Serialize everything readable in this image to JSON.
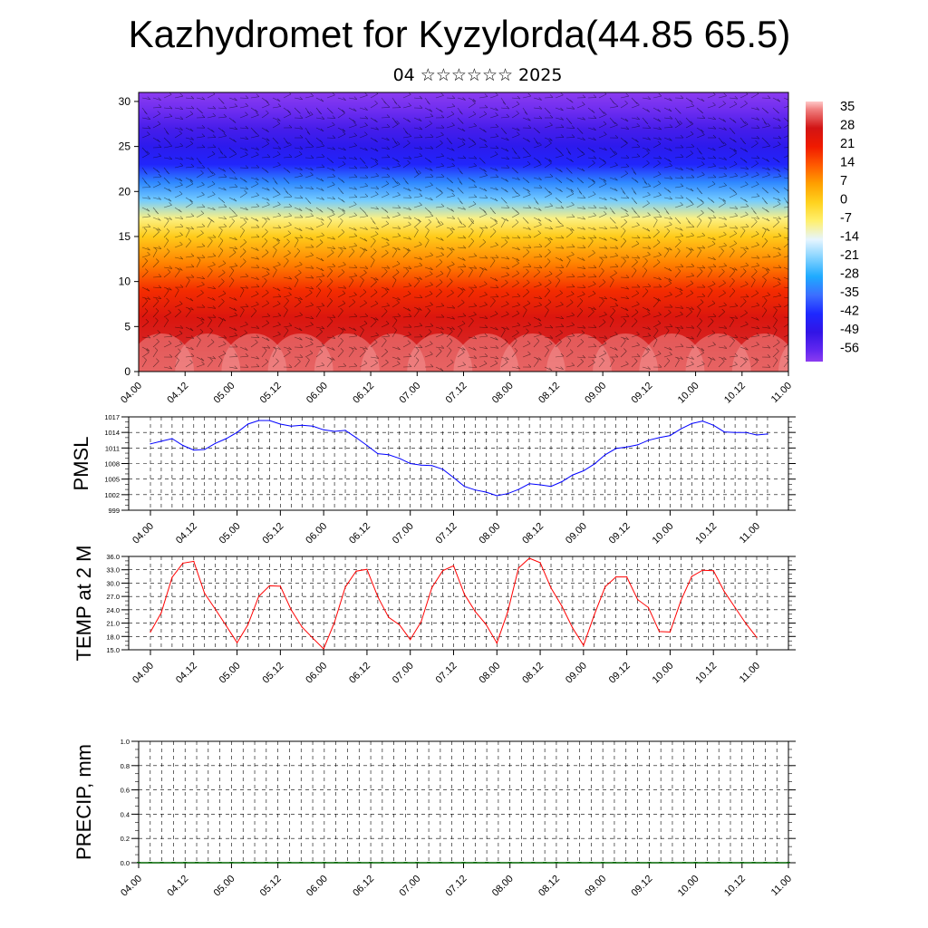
{
  "header": {
    "title": "Kazhydromet for Kyzylorda(44.85 65.5)",
    "date": "04 ☆☆☆☆☆☆ 2025"
  },
  "chart_data": [
    {
      "type": "heatmap",
      "name": "vertical-section",
      "yticks": [
        "0",
        "5",
        "10",
        "15",
        "20",
        "25",
        "30"
      ],
      "ylim": [
        0,
        31
      ],
      "xticks": [
        "04.00",
        "04.12",
        "05.00",
        "05.12",
        "06.00",
        "06.12",
        "07.00",
        "07.12",
        "08.00",
        "08.12",
        "09.00",
        "09.12",
        "10.00",
        "10.12",
        "11.00"
      ],
      "colorbar": {
        "labels": [
          "35",
          "28",
          "21",
          "14",
          "7",
          "0",
          "-7",
          "-14",
          "-21",
          "-28",
          "-35",
          "-42",
          "-49",
          "-56"
        ],
        "stops": [
          {
            "value": 38,
            "color": "#ffc8c8"
          },
          {
            "value": 35,
            "color": "#f08080"
          },
          {
            "value": 28,
            "color": "#d21414"
          },
          {
            "value": 21,
            "color": "#f01a00"
          },
          {
            "value": 14,
            "color": "#ff5a00"
          },
          {
            "value": 7,
            "color": "#ffa000"
          },
          {
            "value": 0,
            "color": "#ffd21e"
          },
          {
            "value": -7,
            "color": "#fff06e"
          },
          {
            "value": -14,
            "color": "#e6f5ff"
          },
          {
            "value": -21,
            "color": "#82d2ff"
          },
          {
            "value": -28,
            "color": "#1eaaff"
          },
          {
            "value": -35,
            "color": "#3c6eff"
          },
          {
            "value": -42,
            "color": "#1e28ff"
          },
          {
            "value": -49,
            "color": "#3214e6"
          },
          {
            "value": -56,
            "color": "#6428f0"
          },
          {
            "value": -60,
            "color": "#8c3cf0"
          }
        ]
      },
      "profile": [
        {
          "h": 0,
          "t": 30
        },
        {
          "h": 3,
          "t": 29
        },
        {
          "h": 6,
          "t": 26
        },
        {
          "h": 9,
          "t": 19
        },
        {
          "h": 12,
          "t": 10
        },
        {
          "h": 15,
          "t": 1
        },
        {
          "h": 17,
          "t": -8
        },
        {
          "h": 19,
          "t": -22
        },
        {
          "h": 21,
          "t": -32
        },
        {
          "h": 23,
          "t": -43
        },
        {
          "h": 25,
          "t": -47
        },
        {
          "h": 27,
          "t": -52
        },
        {
          "h": 29,
          "t": -57
        },
        {
          "h": 31,
          "t": -60
        }
      ]
    },
    {
      "type": "line",
      "name": "pmsl",
      "ylabel": "PMSL",
      "ylim": [
        999,
        1017
      ],
      "yticks": [
        "1017",
        "1014",
        "1011",
        "1008",
        "1005",
        "1002",
        "999"
      ],
      "xticks": [
        "04.00",
        "04.12",
        "05.00",
        "05.12",
        "06.00",
        "06.12",
        "07.00",
        "07.12",
        "08.00",
        "08.12",
        "09.00",
        "09.12",
        "10.00",
        "10.12",
        "11.00"
      ],
      "x_step_hours": 3,
      "color": "#0000ff",
      "values": [
        1011.8,
        1012.3,
        1012.8,
        1011.5,
        1010.6,
        1010.7,
        1011.9,
        1012.8,
        1014.0,
        1015.6,
        1016.3,
        1016.3,
        1015.6,
        1015.2,
        1015.4,
        1015.2,
        1014.5,
        1014.2,
        1014.4,
        1013.0,
        1011.5,
        1009.9,
        1009.7,
        1009.0,
        1008.0,
        1007.7,
        1007.6,
        1006.9,
        1005.3,
        1003.6,
        1002.9,
        1002.5,
        1001.8,
        1002.2,
        1003.0,
        1004.1,
        1003.9,
        1003.6,
        1004.5,
        1005.8,
        1006.6,
        1007.9,
        1009.7,
        1010.9,
        1011.2,
        1011.6,
        1012.5,
        1013.0,
        1013.4,
        1014.7,
        1015.7,
        1016.2,
        1015.4,
        1014.1,
        1014.0,
        1014.0,
        1013.5,
        1013.7
      ]
    },
    {
      "type": "line",
      "name": "temp",
      "ylabel": "TEMP at 2 M",
      "ylim": [
        15,
        36
      ],
      "yticks": [
        "36.0",
        "33.0",
        "30.0",
        "27.0",
        "24.0",
        "21.0",
        "18.0",
        "15.0"
      ],
      "xticks": [
        "04.00",
        "04.12",
        "05.00",
        "05.12",
        "06.00",
        "06.12",
        "07.00",
        "07.12",
        "08.00",
        "08.12",
        "09.00",
        "09.12",
        "10.00",
        "10.12",
        "11.00"
      ],
      "x_step_hours": 3,
      "color": "#ff0000",
      "values": [
        19.0,
        23.3,
        31.3,
        34.5,
        34.9,
        27.7,
        24.1,
        20.4,
        16.6,
        20.6,
        27.0,
        29.4,
        29.3,
        24.0,
        20.1,
        17.6,
        15.2,
        21.2,
        29.1,
        32.7,
        33.1,
        26.9,
        22.3,
        20.6,
        17.3,
        21.3,
        29.0,
        32.8,
        33.9,
        27.5,
        23.6,
        20.7,
        16.5,
        23.5,
        33.4,
        35.6,
        34.6,
        28.9,
        24.8,
        19.9,
        16.0,
        22.9,
        29.2,
        31.4,
        31.4,
        26.3,
        24.5,
        19.1,
        19.0,
        26.1,
        31.5,
        32.9,
        32.8,
        28.1,
        24.5,
        20.9,
        17.8
      ]
    },
    {
      "type": "bar",
      "name": "precip",
      "ylabel": "PRECIP, mm",
      "ylim": [
        0,
        1
      ],
      "yticks": [
        "1.0",
        "0.8",
        "0.6",
        "0.4",
        "0.2",
        "0.0"
      ],
      "xticks": [
        "04.00",
        "04.12",
        "05.00",
        "05.12",
        "06.00",
        "06.12",
        "07.00",
        "07.12",
        "08.00",
        "08.12",
        "09.00",
        "09.12",
        "10.00",
        "10.12",
        "11.00"
      ],
      "x_step_hours": 3,
      "color": "#006400",
      "values": [
        0,
        0,
        0,
        0,
        0,
        0,
        0,
        0,
        0,
        0,
        0,
        0,
        0,
        0,
        0,
        0,
        0,
        0,
        0,
        0,
        0,
        0,
        0,
        0,
        0,
        0,
        0,
        0,
        0,
        0,
        0,
        0,
        0,
        0,
        0,
        0,
        0,
        0,
        0,
        0,
        0,
        0,
        0,
        0,
        0,
        0,
        0,
        0,
        0,
        0,
        0,
        0,
        0,
        0,
        0,
        0,
        0
      ]
    }
  ]
}
